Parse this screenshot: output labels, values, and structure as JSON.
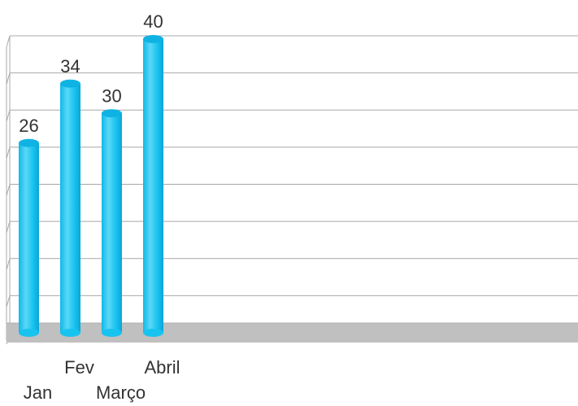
{
  "chart_data": {
    "type": "bar",
    "categories": [
      "Jan",
      "Fev",
      "Março",
      "Abril"
    ],
    "values": [
      26,
      34,
      30,
      40
    ],
    "title": "",
    "xlabel": "",
    "ylabel": "",
    "ylim": [
      0,
      40
    ],
    "grid": true,
    "style": "3d-cylinder",
    "colors": {
      "bar": "#19c3f0",
      "bar_top": "#0fb3e3",
      "bar_shade": "#5ad8f6",
      "grid": "#a8a8a8",
      "floor": "#c0c0c0"
    }
  }
}
